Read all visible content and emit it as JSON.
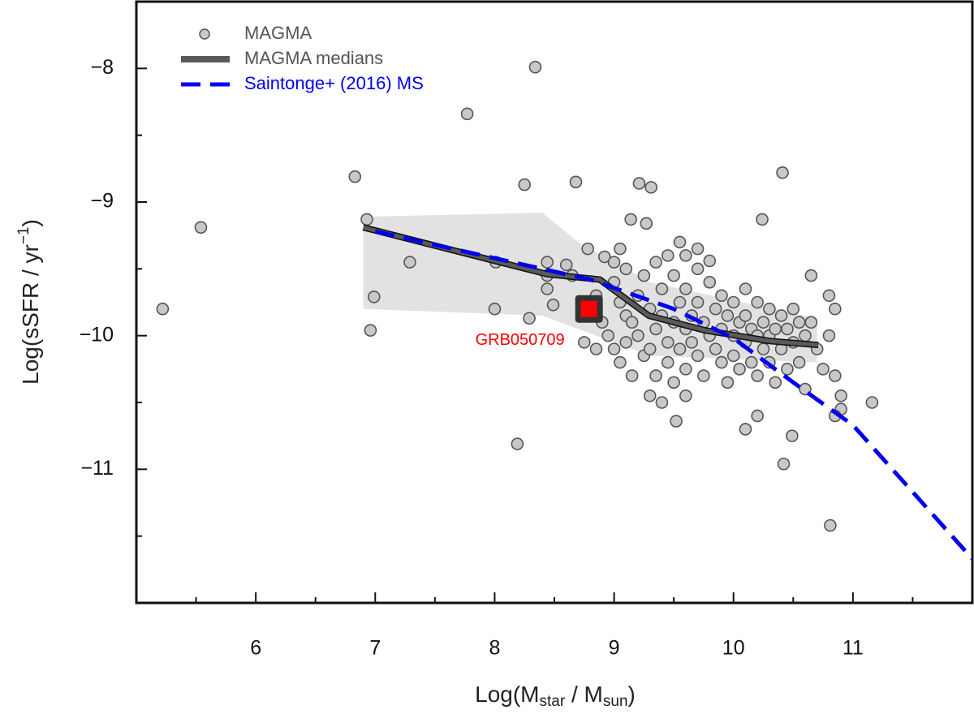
{
  "chart_data": {
    "type": "scatter",
    "xlabel": {
      "parts": [
        "Log(M",
        "star",
        " / M",
        "sun",
        ")"
      ]
    },
    "ylabel": {
      "parts": [
        "Log(sSFR / yr",
        "−1",
        ")"
      ]
    },
    "xlim": [
      5,
      12
    ],
    "ylim": [
      -12,
      -7.5
    ],
    "xticks": [
      6,
      7,
      8,
      9,
      10,
      11
    ],
    "yticks": [
      {
        "value": -8,
        "label": "−8"
      },
      {
        "value": -9,
        "label": "−9"
      },
      {
        "value": -10,
        "label": "−10"
      },
      {
        "value": -11,
        "label": "−11"
      }
    ],
    "xminorticks": [
      5.5,
      6.5,
      7.5,
      8.5,
      9.5,
      10.5,
      11.5
    ],
    "yminorticks": [
      -8.5,
      -9.5,
      -10.5,
      -11.5
    ],
    "legend": "top-left",
    "series": [
      {
        "name": "MAGMA",
        "type": "scatter",
        "color": "#c8c8c8",
        "x": [
          5.22,
          5.54,
          6.83,
          6.93,
          6.99,
          6.96,
          7.29,
          7.77,
          8.34,
          8.25,
          8.68,
          8.19,
          8.0,
          8.01,
          8.29,
          8.44,
          8.44,
          8.44,
          8.49,
          8.6,
          8.65,
          8.78,
          8.92,
          9.05,
          9.14,
          9.21,
          9.31,
          9.27,
          9.6,
          9.8,
          10.24,
          10.41,
          10.65,
          10.8,
          10.85,
          10.8,
          11.16,
          10.81,
          10.42,
          10.1,
          10.2,
          9.52,
          9.4,
          9.6,
          10.49,
          10.9,
          10.85,
          9.0,
          9.05,
          9.1,
          9.1,
          9.15,
          9.2,
          9.2,
          9.25,
          9.25,
          9.3,
          9.3,
          9.35,
          9.35,
          9.4,
          9.4,
          9.45,
          9.45,
          9.5,
          9.5,
          9.5,
          9.55,
          9.55,
          9.6,
          9.6,
          9.6,
          9.65,
          9.65,
          9.7,
          9.7,
          9.7,
          9.75,
          9.75,
          9.8,
          9.8,
          9.85,
          9.85,
          9.9,
          9.9,
          9.9,
          9.95,
          9.95,
          10.0,
          10.0,
          10.0,
          10.05,
          10.05,
          10.1,
          10.1,
          10.1,
          10.15,
          10.15,
          10.2,
          10.2,
          10.2,
          10.25,
          10.25,
          10.3,
          10.3,
          10.3,
          10.35,
          10.35,
          10.4,
          10.4,
          10.45,
          10.45,
          10.5,
          10.5,
          10.55,
          10.55,
          10.6,
          10.6,
          10.65,
          10.7,
          10.75,
          10.85,
          10.9,
          8.9,
          8.95,
          9.0,
          8.85,
          9.05,
          9.15,
          9.3,
          8.75,
          8.85,
          9.0,
          9.1,
          9.35,
          9.45,
          9.55,
          9.7
        ],
        "values": [
          -9.8,
          -9.19,
          -8.81,
          -9.13,
          -9.71,
          -9.96,
          -9.45,
          -8.34,
          -7.99,
          -8.87,
          -8.85,
          -10.81,
          -9.8,
          -9.45,
          -9.87,
          -9.45,
          -9.55,
          -9.65,
          -9.77,
          -9.47,
          -9.55,
          -9.35,
          -9.41,
          -9.35,
          -9.13,
          -8.86,
          -8.89,
          -9.16,
          -9.4,
          -9.44,
          -9.13,
          -8.78,
          -9.55,
          -9.7,
          -9.8,
          -10.0,
          -10.5,
          -11.42,
          -10.96,
          -10.7,
          -10.6,
          -10.64,
          -10.5,
          -10.45,
          -10.75,
          -10.55,
          -10.6,
          -9.6,
          -9.75,
          -9.85,
          -10.05,
          -9.9,
          -9.7,
          -10.0,
          -10.15,
          -9.55,
          -9.8,
          -10.1,
          -9.95,
          -10.3,
          -9.65,
          -9.85,
          -10.05,
          -10.2,
          -9.55,
          -9.9,
          -10.35,
          -9.75,
          -10.1,
          -9.65,
          -9.95,
          -10.25,
          -9.85,
          -10.05,
          -9.5,
          -9.75,
          -10.15,
          -9.9,
          -10.3,
          -9.6,
          -10.0,
          -9.8,
          -10.1,
          -9.7,
          -9.95,
          -10.2,
          -9.85,
          -10.35,
          -9.75,
          -10.0,
          -10.15,
          -9.9,
          -10.25,
          -9.65,
          -9.85,
          -10.05,
          -9.95,
          -10.2,
          -9.75,
          -10.0,
          -10.3,
          -9.9,
          -10.1,
          -9.8,
          -10.0,
          -10.2,
          -9.95,
          -10.35,
          -9.85,
          -10.1,
          -9.95,
          -10.25,
          -9.8,
          -10.05,
          -9.9,
          -10.2,
          -10.0,
          -10.4,
          -9.9,
          -10.1,
          -10.25,
          -10.3,
          -10.45,
          -9.9,
          -10.0,
          -10.1,
          -9.7,
          -10.2,
          -10.3,
          -10.45,
          -10.05,
          -10.1,
          -9.45,
          -9.5,
          -9.45,
          -9.4,
          -9.3,
          -9.35
        ]
      },
      {
        "name": "MAGMA medians",
        "type": "line",
        "color": "#5a5a5a",
        "x": [
          6.9,
          8.44,
          8.88,
          9.29,
          9.76,
          10.3,
          10.71
        ],
        "values": [
          -9.19,
          -9.54,
          -9.58,
          -9.85,
          -9.96,
          -10.04,
          -10.07
        ]
      },
      {
        "name": "Saintonge+ (2016) MS",
        "type": "dashed-line",
        "color": "#0000ee",
        "x": [
          7,
          8,
          8.8,
          9.5,
          10,
          10.5,
          11,
          12
        ],
        "values": [
          -9.22,
          -9.42,
          -9.58,
          -9.8,
          -10.02,
          -10.35,
          -10.67,
          -11.67
        ]
      }
    ],
    "band": {
      "color": "#e2e2e2",
      "x": [
        6.9,
        8.4,
        8.7,
        9.3,
        10.7
      ],
      "upper": [
        -9.11,
        -9.08,
        -9.3,
        -9.6,
        -9.87
      ],
      "lower": [
        -9.8,
        -9.85,
        -9.95,
        -10.15,
        -10.2
      ]
    },
    "highlight": {
      "label": "GRB050709",
      "x": 8.79,
      "y": -9.8,
      "color": "#ff0000"
    }
  }
}
